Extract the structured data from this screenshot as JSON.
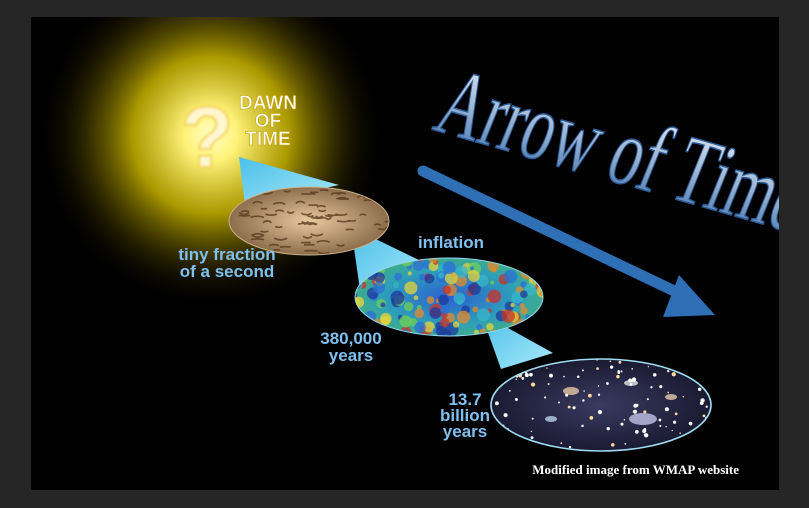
{
  "diagram": {
    "dawn_label": [
      "DAWN",
      "OF",
      "TIME"
    ],
    "question_mark": "?",
    "arrow_title": "Arrow of Time",
    "stages": [
      {
        "label": [
          "tiny fraction",
          "of a second"
        ],
        "texture": "foam-texture"
      },
      {
        "label": [
          "inflation"
        ]
      },
      {
        "label": [
          "380,000",
          "years"
        ],
        "texture": "cmb-map-texture"
      },
      {
        "label": [
          "13.7",
          "billion",
          "years"
        ],
        "texture": "galaxies-texture"
      }
    ],
    "credit": "Modified image from WMAP website"
  },
  "colors": {
    "glow": "#fff27a",
    "label_blue": "#7fc0ee",
    "arrow_blue": "#2f6fb5",
    "beam": "#6fd2f2"
  }
}
